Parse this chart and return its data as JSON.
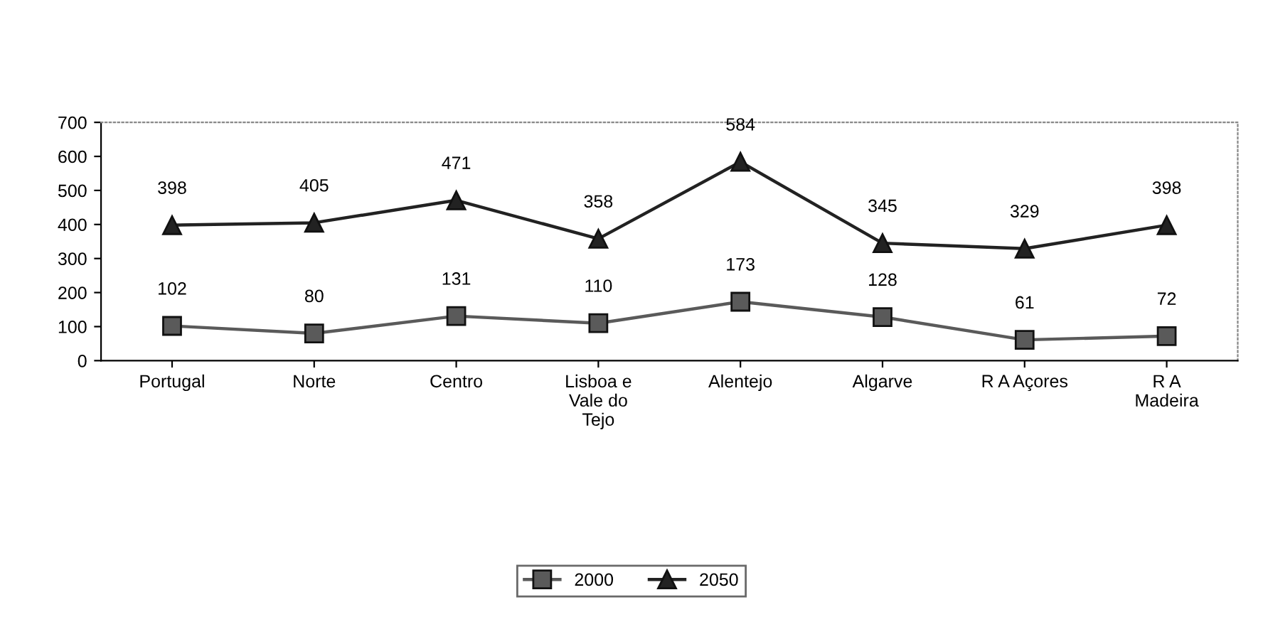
{
  "chart_data": {
    "type": "line",
    "categories": [
      "Portugal",
      "Norte",
      "Centro",
      "Lisboa e\nVale do\nTejo",
      "Alentejo",
      "Algarve",
      "R A Açores",
      "R A\nMadeira"
    ],
    "series": [
      {
        "name": "2000",
        "color": "#5a5a5a",
        "marker": "square",
        "values": [
          102,
          80,
          131,
          110,
          173,
          128,
          61,
          72
        ]
      },
      {
        "name": "2050",
        "color": "#222222",
        "marker": "triangle",
        "values": [
          398,
          405,
          471,
          358,
          584,
          345,
          329,
          398
        ]
      }
    ],
    "ylim": [
      0,
      700
    ],
    "yticks": [
      0,
      100,
      200,
      300,
      400,
      500,
      600,
      700
    ],
    "data_labels": true,
    "grid": false,
    "legend": "bottom",
    "line_style": "solid"
  }
}
